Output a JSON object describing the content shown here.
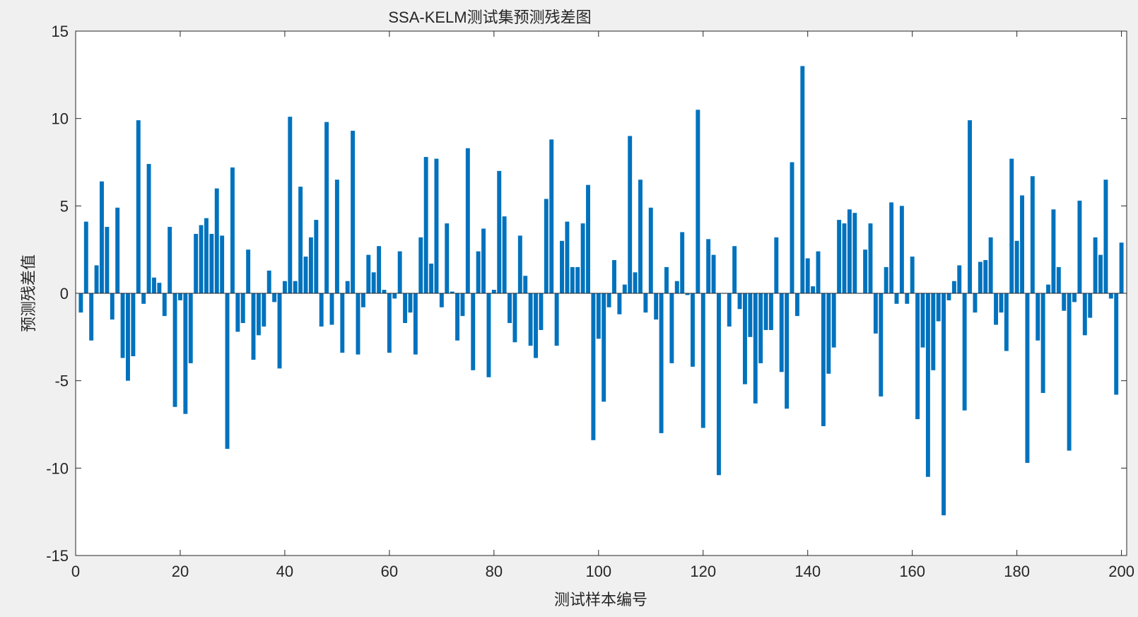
{
  "chart_data": {
    "type": "bar",
    "title": "SSA-KELM测试集预测残差图",
    "xlabel": "测试样本编号",
    "ylabel": "预测残差值",
    "xlim": [
      0,
      201
    ],
    "ylim": [
      -15,
      15
    ],
    "xticks": [
      0,
      20,
      40,
      60,
      80,
      100,
      120,
      140,
      160,
      180,
      200
    ],
    "yticks": [
      -15,
      -10,
      -5,
      0,
      5,
      10,
      15
    ],
    "grid": false,
    "bar_color": "#0072BD",
    "x": [
      1,
      2,
      3,
      4,
      5,
      6,
      7,
      8,
      9,
      10,
      11,
      12,
      13,
      14,
      15,
      16,
      17,
      18,
      19,
      20,
      21,
      22,
      23,
      24,
      25,
      26,
      27,
      28,
      29,
      30,
      31,
      32,
      33,
      34,
      35,
      36,
      37,
      38,
      39,
      40,
      41,
      42,
      43,
      44,
      45,
      46,
      47,
      48,
      49,
      50,
      51,
      52,
      53,
      54,
      55,
      56,
      57,
      58,
      59,
      60,
      61,
      62,
      63,
      64,
      65,
      66,
      67,
      68,
      69,
      70,
      71,
      72,
      73,
      74,
      75,
      76,
      77,
      78,
      79,
      80,
      81,
      82,
      83,
      84,
      85,
      86,
      87,
      88,
      89,
      90,
      91,
      92,
      93,
      94,
      95,
      96,
      97,
      98,
      99,
      100,
      101,
      102,
      103,
      104,
      105,
      106,
      107,
      108,
      109,
      110,
      111,
      112,
      113,
      114,
      115,
      116,
      117,
      118,
      119,
      120,
      121,
      122,
      123,
      124,
      125,
      126,
      127,
      128,
      129,
      130,
      131,
      132,
      133,
      134,
      135,
      136,
      137,
      138,
      139,
      140,
      141,
      142,
      143,
      144,
      145,
      146,
      147,
      148,
      149,
      150,
      151,
      152,
      153,
      154,
      155,
      156,
      157,
      158,
      159,
      160,
      161,
      162,
      163,
      164,
      165,
      166,
      167,
      168,
      169,
      170,
      171,
      172,
      173,
      174,
      175,
      176,
      177,
      178,
      179,
      180,
      181,
      182,
      183,
      184,
      185,
      186,
      187,
      188,
      189,
      190,
      191,
      192,
      193,
      194,
      195,
      196,
      197,
      198,
      199,
      200
    ],
    "values": [
      -1.1,
      4.1,
      -2.7,
      1.6,
      6.4,
      3.8,
      -1.5,
      4.9,
      -3.7,
      -5.0,
      -3.6,
      9.9,
      -0.6,
      7.4,
      0.9,
      0.6,
      -1.3,
      3.8,
      -6.5,
      -0.4,
      -6.9,
      -4.0,
      3.4,
      3.9,
      4.3,
      3.4,
      6.0,
      3.3,
      -8.9,
      7.2,
      -2.2,
      -1.7,
      2.5,
      -3.8,
      -2.4,
      -1.9,
      1.3,
      -0.5,
      -4.3,
      0.7,
      10.1,
      0.7,
      6.1,
      2.1,
      3.2,
      4.2,
      -1.9,
      9.8,
      -1.8,
      6.5,
      -3.4,
      0.7,
      9.3,
      -3.5,
      -0.8,
      2.2,
      1.2,
      2.7,
      0.2,
      -3.4,
      -0.3,
      2.4,
      -1.7,
      -1.1,
      -3.5,
      3.2,
      7.8,
      1.7,
      7.7,
      -0.8,
      4.0,
      0.1,
      -2.7,
      -1.3,
      8.3,
      -4.4,
      2.4,
      3.7,
      -4.8,
      0.2,
      7.0,
      4.4,
      -1.7,
      -2.8,
      3.3,
      1.0,
      -3.0,
      -3.7,
      -2.1,
      5.4,
      8.8,
      -3.0,
      3.0,
      4.1,
      1.5,
      1.5,
      4.0,
      6.2,
      -8.4,
      -2.6,
      -6.2,
      -0.8,
      1.9,
      -1.2,
      0.5,
      9.0,
      1.2,
      6.5,
      -1.1,
      4.9,
      -1.5,
      -8.0,
      1.5,
      -4.0,
      0.7,
      3.5,
      -0.1,
      -4.2,
      10.5,
      -7.7,
      3.1,
      2.2,
      -10.4,
      0.0,
      -1.9,
      2.7,
      -0.9,
      -5.2,
      -2.5,
      -6.3,
      -4.0,
      -2.1,
      -2.1,
      3.2,
      -4.5,
      -6.6,
      7.5,
      -1.3,
      13.0,
      2.0,
      0.4,
      2.4,
      -7.6,
      -4.6,
      -3.1,
      4.2,
      4.0,
      4.8,
      4.6,
      0.0,
      2.5,
      4.0,
      -2.3,
      -5.9,
      1.5,
      5.2,
      -0.6,
      5.0,
      -0.6,
      2.1,
      -7.2,
      -3.1,
      -10.5,
      -4.4,
      -1.6,
      -12.7,
      -0.4,
      0.7,
      1.6,
      -6.7,
      9.9,
      -1.1,
      1.8,
      1.9,
      3.2,
      -1.8,
      -1.1,
      -3.3,
      7.7,
      3.0,
      5.6,
      -9.7,
      6.7,
      -2.7,
      -5.7,
      0.5,
      4.8,
      1.5,
      -1.0,
      -9.0,
      -0.5,
      5.3,
      -2.4,
      -1.4,
      3.2,
      2.2,
      6.5,
      -0.3,
      -5.8,
      2.9
    ]
  }
}
